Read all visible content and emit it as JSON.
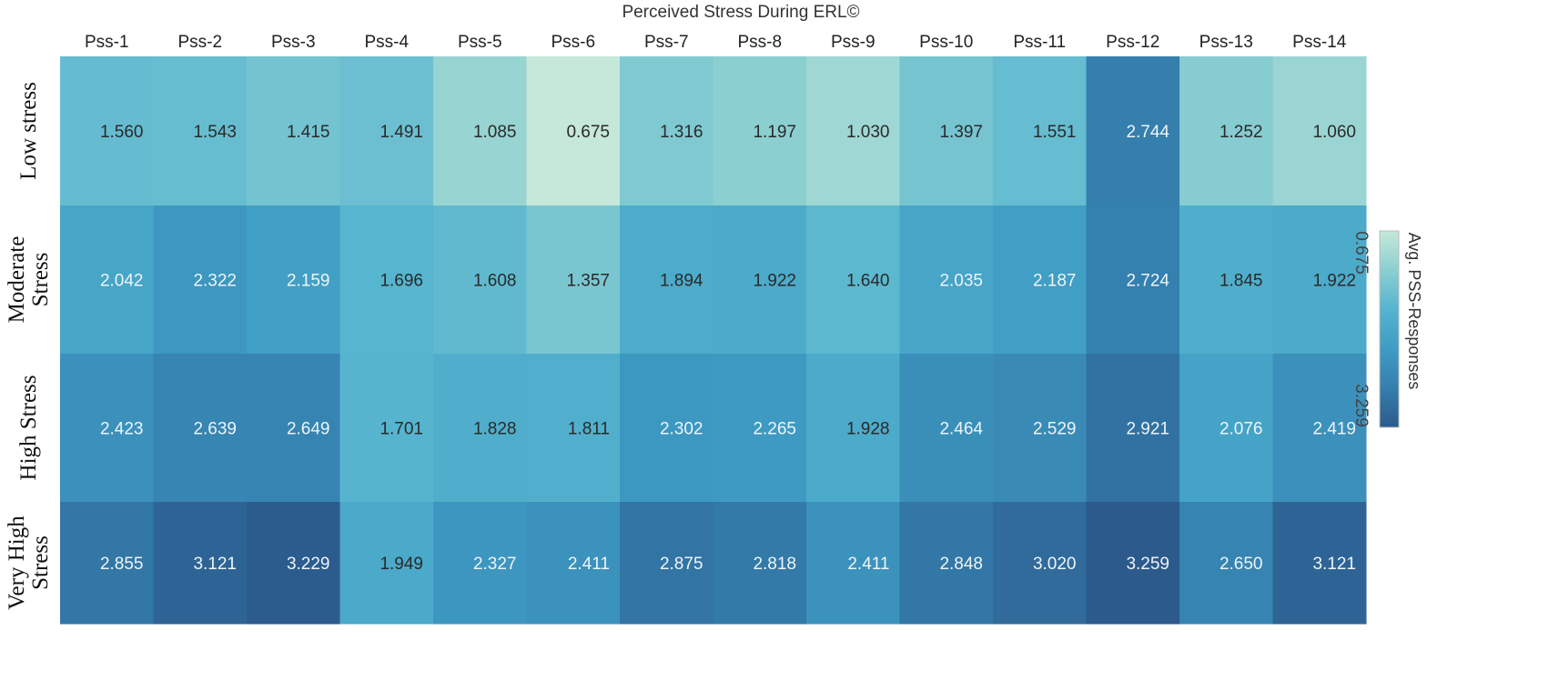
{
  "chart_data": {
    "type": "heatmap",
    "title": "Perceived Stress During ERL©",
    "columns": [
      "Pss-1",
      "Pss-2",
      "Pss-3",
      "Pss-4",
      "Pss-5",
      "Pss-6",
      "Pss-7",
      "Pss-8",
      "Pss-9",
      "Pss-10",
      "Pss-11",
      "Pss-12",
      "Pss-13",
      "Pss-14"
    ],
    "rows": [
      {
        "lines": [
          "Low stress"
        ]
      },
      {
        "lines": [
          "Moderate",
          "Stress"
        ]
      },
      {
        "lines": [
          "High Stress"
        ]
      },
      {
        "lines": [
          "Very High",
          "Stress"
        ]
      }
    ],
    "values": [
      [
        1.56,
        1.543,
        1.415,
        1.491,
        1.085,
        0.675,
        1.316,
        1.197,
        1.03,
        1.397,
        1.551,
        2.744,
        1.252,
        1.06
      ],
      [
        2.042,
        2.322,
        2.159,
        1.696,
        1.608,
        1.357,
        1.894,
        1.922,
        1.64,
        2.035,
        2.187,
        2.724,
        1.845,
        1.922
      ],
      [
        2.423,
        2.639,
        2.649,
        1.701,
        1.828,
        1.811,
        2.302,
        2.265,
        1.928,
        2.464,
        2.529,
        2.921,
        2.076,
        2.419
      ],
      [
        2.855,
        3.121,
        3.229,
        1.949,
        2.327,
        2.411,
        2.875,
        2.818,
        2.411,
        2.848,
        3.02,
        3.259,
        2.65,
        3.121
      ]
    ],
    "value_labels": [
      [
        "1.560",
        "1.543",
        "1.415",
        "1.491",
        "1.085",
        "0.675",
        "1.316",
        "1.197",
        "1.030",
        "1.397",
        "1.551",
        "2.744",
        "1.252",
        "1.060"
      ],
      [
        "2.042",
        "2.322",
        "2.159",
        "1.696",
        "1.608",
        "1.357",
        "1.894",
        "1.922",
        "1.640",
        "2.035",
        "2.187",
        "2.724",
        "1.845",
        "1.922"
      ],
      [
        "2.423",
        "2.639",
        "2.649",
        "1.701",
        "1.828",
        "1.811",
        "2.302",
        "2.265",
        "1.928",
        "2.464",
        "2.529",
        "2.921",
        "2.076",
        "2.419"
      ],
      [
        "2.855",
        "3.121",
        "3.229",
        "1.949",
        "2.327",
        "2.411",
        "2.875",
        "2.818",
        "2.411",
        "2.848",
        "3.020",
        "3.259",
        "2.650",
        "3.121"
      ]
    ],
    "legend": {
      "title": "Avg. PSS-Responses",
      "min_label": "0.675",
      "max_label": "3.259",
      "min": 0.675,
      "max": 3.259,
      "placement": "right"
    },
    "color_scale": [
      "#c5e8d8",
      "#8ccfd1",
      "#55b4cf",
      "#3f9cc4",
      "#347fad",
      "#2c5a8c"
    ],
    "text_colors": {
      "dark": "#2a2a2a",
      "light": "#eef4f8"
    }
  }
}
